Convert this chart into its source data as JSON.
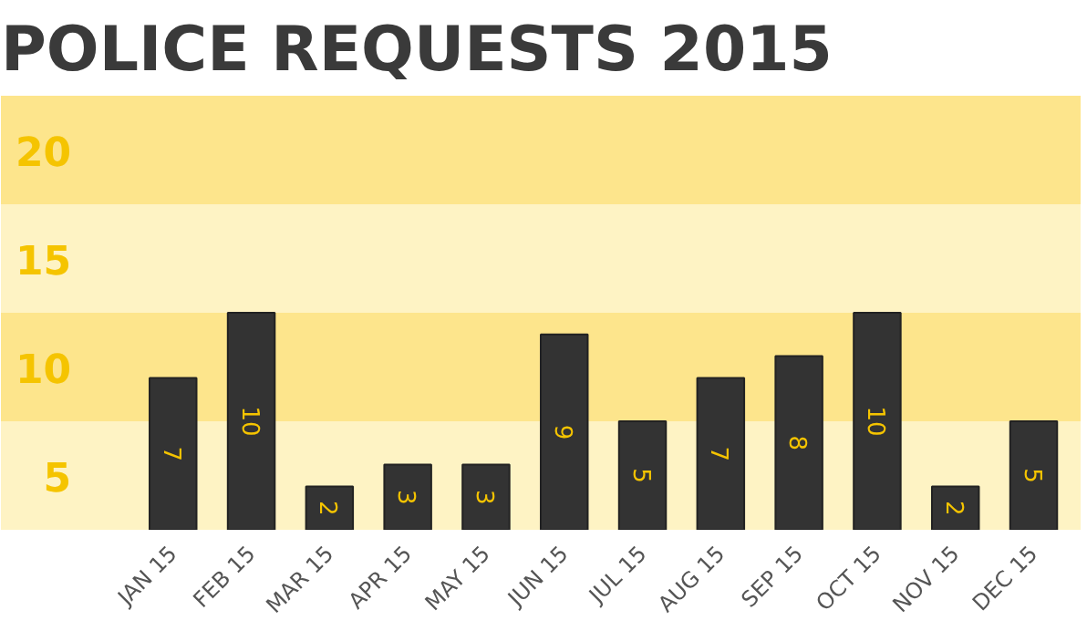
{
  "chart_data": {
    "type": "bar",
    "title": "POLICE REQUESTS 2015",
    "categories": [
      "JAN 15",
      "FEB 15",
      "MAR 15",
      "APR 15",
      "MAY 15",
      "JUN 15",
      "JUL 15",
      "AUG 15",
      "SEP 15",
      "OCT 15",
      "NOV 15",
      "DEC 15"
    ],
    "values": [
      7,
      10,
      2,
      3,
      3,
      9,
      5,
      7,
      8,
      10,
      2,
      5
    ],
    "color": "#333333",
    "data_labels": true,
    "tick_labels": "x",
    "bands": [
      {
        "axis": "y",
        "from": 0,
        "to": 5,
        "label": "5",
        "color": "#fef3c4"
      },
      {
        "axis": "y",
        "from": 5,
        "to": 10,
        "label": "10",
        "color": "#fde58c"
      },
      {
        "axis": "y",
        "from": 10,
        "to": 15,
        "label": "15",
        "color": "#fef3c4"
      },
      {
        "axis": "y",
        "from": 15,
        "to": 20,
        "label": "20",
        "color": "#fde58c"
      }
    ]
  }
}
